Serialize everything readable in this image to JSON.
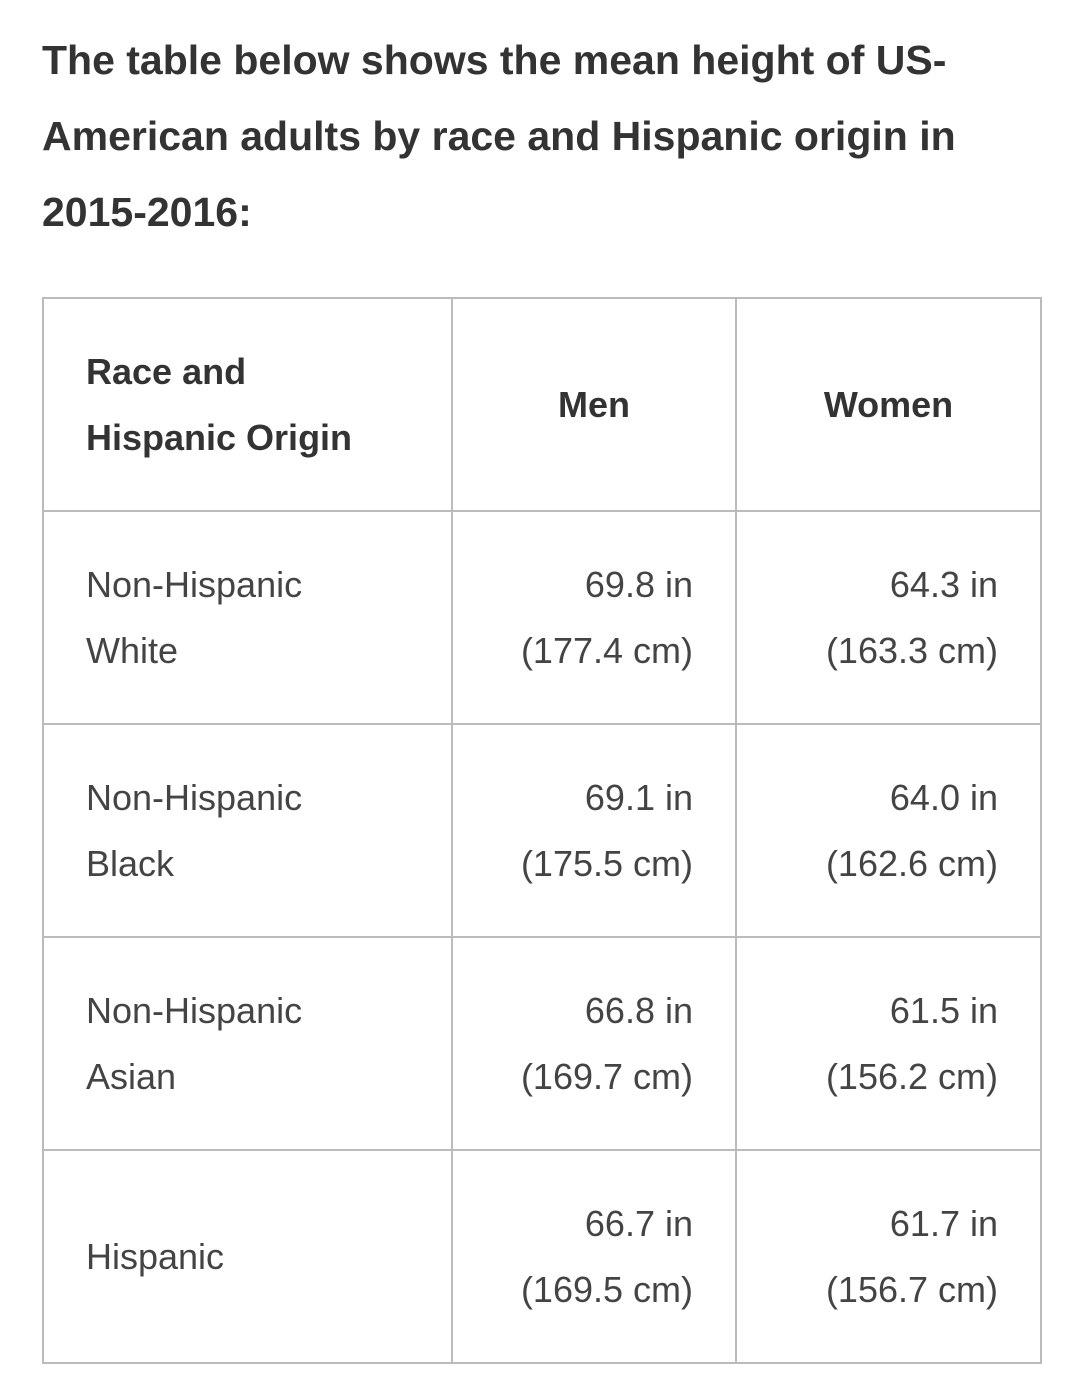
{
  "heading": "The table below shows the mean height of US-American adults by race and Hispanic origin in 2015-2016:",
  "table": {
    "header": [
      [
        "Race and",
        "Hispanic Origin"
      ],
      [
        "Men"
      ],
      [
        "Women"
      ]
    ],
    "rows": [
      [
        [
          "Non-Hispanic",
          "White"
        ],
        [
          "69.8 in",
          "(177.4 cm)"
        ],
        [
          "64.3 in",
          "(163.3 cm)"
        ]
      ],
      [
        [
          "Non-Hispanic",
          "Black"
        ],
        [
          "69.1 in",
          "(175.5 cm)"
        ],
        [
          "64.0 in",
          "(162.6 cm)"
        ]
      ],
      [
        [
          "Non-Hispanic",
          "Asian"
        ],
        [
          "66.8 in",
          "(169.7 cm)"
        ],
        [
          "61.5 in",
          "(156.2 cm)"
        ]
      ],
      [
        [
          "Hispanic"
        ],
        [
          "66.7 in",
          "(169.5 cm)"
        ],
        [
          "61.7 in",
          "(156.7 cm)"
        ]
      ]
    ]
  }
}
